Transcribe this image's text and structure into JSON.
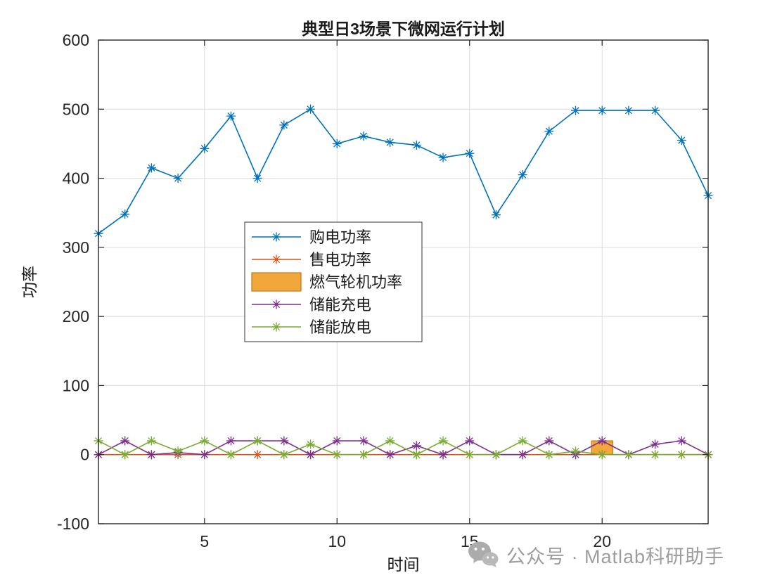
{
  "watermark": {
    "text": "公众号 · Matlab科研助手",
    "icon": "wechat-icon",
    "color": "#9d9d9d"
  },
  "chart_data": {
    "type": "line",
    "title": "典型日3场景下微网运行计划",
    "xlabel": "时间",
    "ylabel": "功率",
    "xlim": [
      1,
      24
    ],
    "ylim": [
      -100,
      600
    ],
    "xticks": [
      5,
      10,
      15,
      20
    ],
    "yticks": [
      -100,
      0,
      100,
      200,
      300,
      400,
      500,
      600
    ],
    "grid": true,
    "legend_position": "inside-center-left",
    "axis_color": "#262626",
    "grid_color": "#dcdcdc",
    "x": [
      1,
      2,
      3,
      4,
      5,
      6,
      7,
      8,
      9,
      10,
      11,
      12,
      13,
      14,
      15,
      16,
      17,
      18,
      19,
      20,
      21,
      22,
      23,
      24
    ],
    "series": [
      {
        "name": "购电功率",
        "style": "line-marker",
        "color": "#0072BD",
        "values": [
          320,
          348,
          415,
          400,
          443,
          490,
          400,
          477,
          500,
          450,
          461,
          452,
          448,
          430,
          436,
          347,
          405,
          468,
          498,
          498,
          498,
          498,
          455,
          375
        ]
      },
      {
        "name": "售电功率",
        "style": "line-marker",
        "color": "#D95319",
        "values": [
          0,
          0,
          0,
          0,
          0,
          0,
          0,
          0,
          0,
          0,
          0,
          0,
          0,
          0,
          0,
          0,
          0,
          0,
          0,
          0,
          0,
          0,
          0,
          0
        ]
      },
      {
        "name": "燃气轮机功率",
        "style": "bar",
        "color": "#F2A73B",
        "edge": "#C07A1C",
        "bar_width": 0.8,
        "values": [
          0,
          0,
          0,
          0,
          0,
          0,
          0,
          0,
          0,
          0,
          0,
          0,
          0,
          0,
          0,
          0,
          0,
          0,
          0,
          20,
          0,
          0,
          0,
          0
        ]
      },
      {
        "name": "储能充电",
        "style": "line-marker",
        "color": "#7E2F8E",
        "values": [
          0,
          20,
          0,
          3,
          0,
          20,
          20,
          20,
          0,
          20,
          20,
          0,
          13,
          0,
          20,
          0,
          0,
          20,
          0,
          20,
          0,
          15,
          20,
          0
        ]
      },
      {
        "name": "储能放电",
        "style": "line-marker",
        "color": "#77AC30",
        "values": [
          20,
          0,
          20,
          5,
          20,
          0,
          20,
          0,
          15,
          0,
          0,
          20,
          0,
          20,
          0,
          0,
          20,
          0,
          5,
          0,
          0,
          0,
          0,
          0
        ]
      }
    ]
  }
}
